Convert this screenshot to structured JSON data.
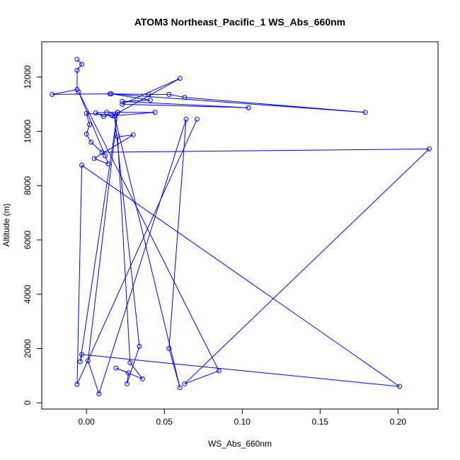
{
  "chart_data": {
    "type": "line",
    "title": "ATOM3 Northeast_Pacific_1 WS_Abs_660nm",
    "xlabel": "WS_Abs_660nm",
    "ylabel": "Altitude (m)",
    "xlim": [
      -0.0287,
      0.2257
    ],
    "ylim": [
      -230,
      13300
    ],
    "x_ticks": [
      0.0,
      0.05,
      0.1,
      0.15,
      0.2
    ],
    "x_tick_labels": [
      "0.00",
      "0.05",
      "0.10",
      "0.15",
      "0.20"
    ],
    "y_ticks": [
      0,
      2000,
      4000,
      6000,
      8000,
      10000,
      12000
    ],
    "y_tick_labels": [
      "0",
      "2000",
      "4000",
      "6000",
      "8000",
      "10000",
      "12000"
    ],
    "grid": false,
    "legend": "none",
    "marker": "open-circle",
    "series": [
      {
        "color": "#0000ff",
        "points": [
          [
            -0.006,
            12650
          ],
          [
            -0.003,
            12470
          ],
          [
            -0.006,
            12250
          ],
          [
            -0.006,
            11540
          ],
          [
            -0.022,
            11360
          ],
          [
            0.015,
            11380
          ],
          [
            0.04,
            11360
          ],
          [
            0.053,
            11360
          ],
          [
            0.063,
            11250
          ],
          [
            0.179,
            10700
          ],
          [
            0.016,
            11380
          ],
          [
            0.041,
            11150
          ],
          [
            0.023,
            11100
          ],
          [
            0.104,
            10870
          ],
          [
            0.023,
            11000
          ],
          [
            0.06,
            11950
          ],
          [
            0.017,
            10570
          ],
          [
            0.044,
            10700
          ],
          [
            0.02,
            10700
          ],
          [
            0.013,
            10700
          ],
          [
            0.006,
            10680
          ],
          [
            0.011,
            10550
          ],
          [
            0.016,
            10600
          ],
          [
            0.0,
            10660
          ],
          [
            0.002,
            10250
          ],
          [
            0.0,
            9900
          ],
          [
            0.003,
            9600
          ],
          [
            0.01,
            9230
          ],
          [
            0.22,
            9350
          ],
          [
            0.063,
            700
          ],
          [
            0.085,
            1180
          ],
          [
            -0.005,
            11450
          ],
          [
            0.012,
            9100
          ],
          [
            0.014,
            8800
          ],
          [
            0.005,
            9000
          ],
          [
            0.03,
            9870
          ],
          [
            0.02,
            9800
          ],
          [
            0.028,
            1480
          ],
          [
            0.036,
            880
          ],
          [
            0.019,
            1280
          ],
          [
            0.027,
            1100
          ],
          [
            0.026,
            700
          ],
          [
            0.034,
            2080
          ],
          [
            0.018,
            10570
          ],
          [
            0.06,
            560
          ],
          [
            0.053,
            2000
          ],
          [
            0.064,
            10450
          ],
          [
            0.008,
            330
          ],
          [
            0.001,
            1550
          ],
          [
            0.02,
            10700
          ],
          [
            -0.004,
            1520
          ],
          [
            -0.003,
            1780
          ],
          [
            0.201,
            600
          ],
          [
            -0.003,
            8750
          ],
          [
            -0.006,
            680
          ],
          [
            0.071,
            10450
          ]
        ]
      }
    ]
  }
}
